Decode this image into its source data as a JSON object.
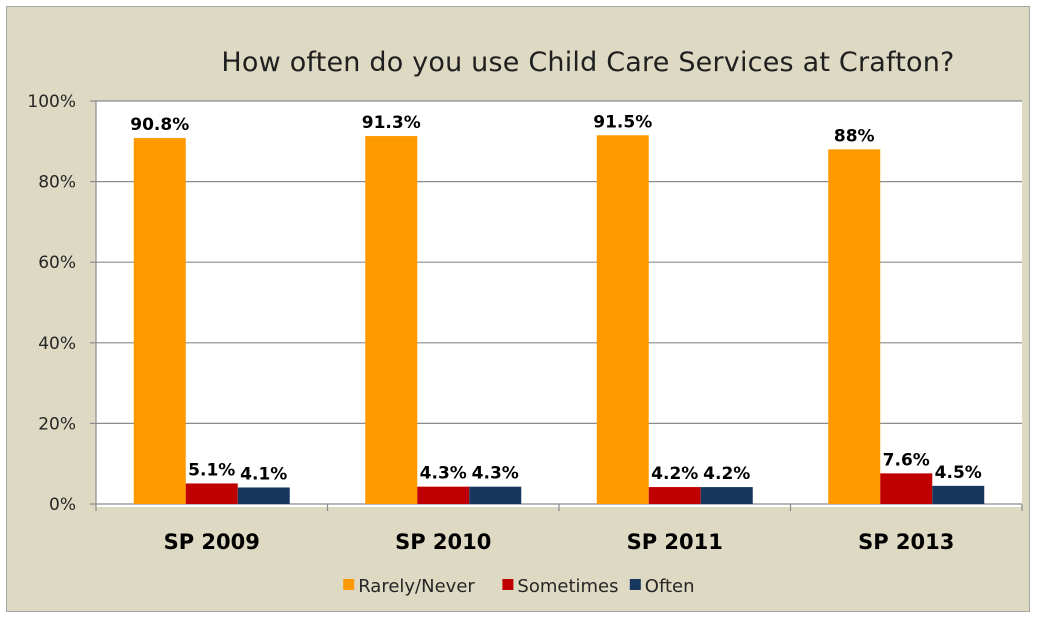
{
  "chart_data": {
    "type": "bar",
    "title": "How often do you use Child Care Services at Crafton?",
    "categories": [
      "SP 2009",
      "SP 2010",
      "SP 2011",
      "SP 2013"
    ],
    "series": [
      {
        "name": "Rarely/Never",
        "color": "#ff9900",
        "values": [
          90.8,
          91.3,
          91.5,
          88
        ],
        "labels": [
          "90.8%",
          "91.3%",
          "91.5%",
          "88%"
        ]
      },
      {
        "name": "Sometimes",
        "color": "#c00000",
        "values": [
          5.1,
          4.3,
          4.2,
          7.6
        ],
        "labels": [
          "5.1%",
          "4.3%",
          "4.2%",
          "7.6%"
        ]
      },
      {
        "name": "Often",
        "color": "#17375e",
        "values": [
          4.1,
          4.3,
          4.2,
          4.5
        ],
        "labels": [
          "4.1%",
          "4.3%",
          "4.2%",
          "4.5%"
        ]
      }
    ],
    "ylim": [
      0,
      100
    ],
    "yticks": [
      "0%",
      "20%",
      "40%",
      "60%",
      "80%",
      "100%"
    ],
    "ytick_values": [
      0,
      20,
      40,
      60,
      80,
      100
    ],
    "grid": true,
    "legend": "bottom",
    "plot_background": "#ffffff",
    "chart_background": "#ddd9c3"
  }
}
